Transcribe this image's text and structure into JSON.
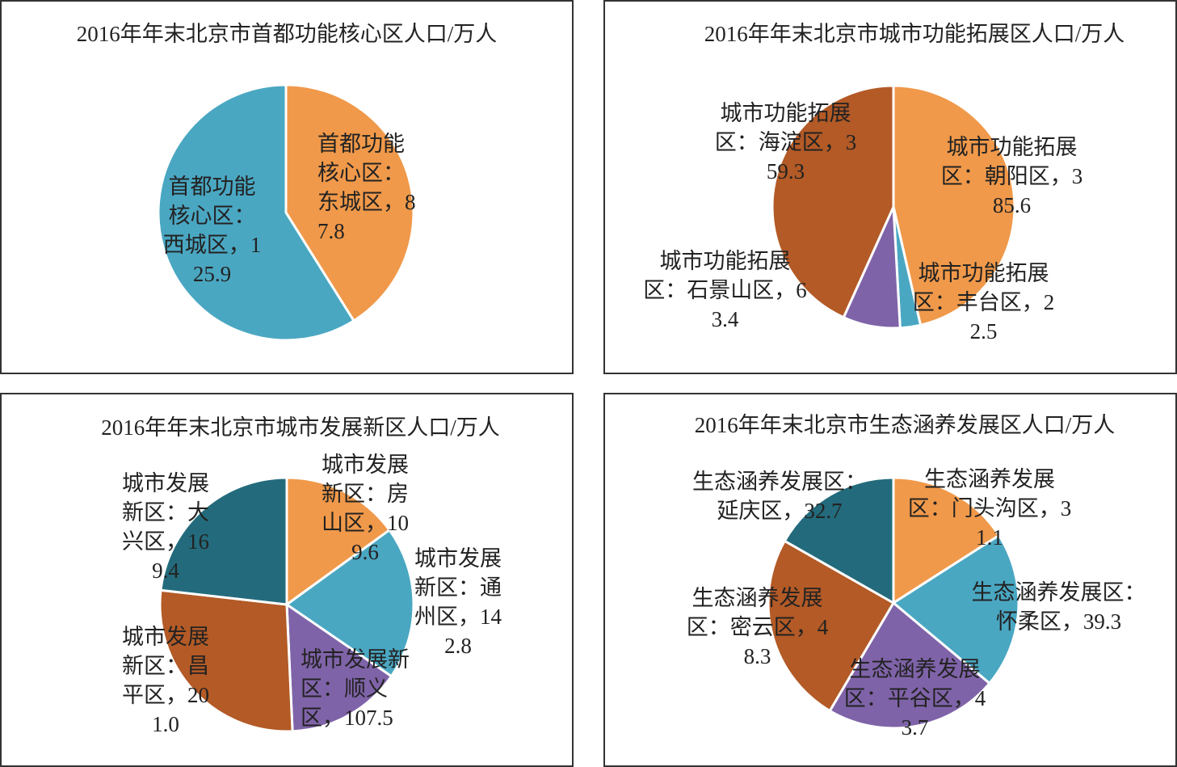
{
  "chart_data": [
    {
      "type": "pie",
      "title": "2016年年末北京市首都功能核心区人口/万人",
      "values": [
        87.8,
        125.9
      ],
      "value_labels": [
        "首都功能核心区：东城区，87.8",
        "首都功能核心区：西城区，125.9"
      ],
      "colors": [
        "#f0994a",
        "#4aa7c2"
      ]
    },
    {
      "type": "pie",
      "title": "2016年年末北京市城市功能拓展区人口/万人",
      "values": [
        385.6,
        22.5,
        63.4,
        359.3
      ],
      "value_labels": [
        "城市功能拓展区：朝阳区，385.6",
        "城市功能拓展区：丰台区，22.5",
        "城市功能拓展区：石景山区，63.4",
        "城市功能拓展区：海淀区，359.3"
      ],
      "colors": [
        "#f0994a",
        "#4aa7c2",
        "#7f63a8",
        "#b35a26"
      ]
    },
    {
      "type": "pie",
      "title": "2016年年末北京市城市发展新区人口/万人",
      "values": [
        109.6,
        142.8,
        107.5,
        201,
        169.4
      ],
      "value_labels": [
        "城市发展新区：房山区，109.6",
        "城市发展新区：通州区，142.8",
        "城市发展新区：顺义区，107.5",
        "城市发展新区：昌平区，201.0",
        "城市发展新区：大兴区，169.4"
      ],
      "colors": [
        "#f0994a",
        "#4aa7c2",
        "#7f63a8",
        "#b35a26",
        "#236b7c"
      ]
    },
    {
      "type": "pie",
      "title": "2016年年末北京市生态涵养发展区人口/万人",
      "values": [
        31.1,
        39.3,
        43.7,
        48.3,
        32.7
      ],
      "value_labels": [
        "生态涵养发展区：门头沟区，31.1",
        "生态涵养发展区：怀柔区，39.3",
        "生态涵养发展区：平谷区，43.7",
        "生态涵养发展区：密云区，48.3",
        "生态涵养发展区：延庆区，32.7"
      ],
      "colors": [
        "#f0994a",
        "#4aa7c2",
        "#7f63a8",
        "#b35a26",
        "#236b7c"
      ]
    }
  ]
}
